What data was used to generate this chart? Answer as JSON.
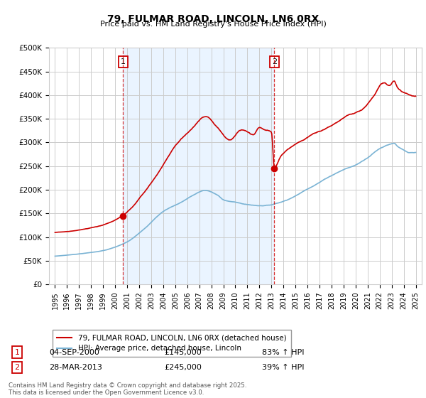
{
  "title": "79, FULMAR ROAD, LINCOLN, LN6 0RX",
  "subtitle": "Price paid vs. HM Land Registry's House Price Index (HPI)",
  "xlim_start": 1994.5,
  "xlim_end": 2025.5,
  "ylim_min": 0,
  "ylim_max": 500000,
  "yticks": [
    0,
    50000,
    100000,
    150000,
    200000,
    250000,
    300000,
    350000,
    400000,
    450000,
    500000
  ],
  "ytick_labels": [
    "£0",
    "£50K",
    "£100K",
    "£150K",
    "£200K",
    "£250K",
    "£300K",
    "£350K",
    "£400K",
    "£450K",
    "£500K"
  ],
  "xticks": [
    1995,
    1996,
    1997,
    1998,
    1999,
    2000,
    2001,
    2002,
    2003,
    2004,
    2005,
    2006,
    2007,
    2008,
    2009,
    2010,
    2011,
    2012,
    2013,
    2014,
    2015,
    2016,
    2017,
    2018,
    2019,
    2020,
    2021,
    2022,
    2023,
    2024,
    2025
  ],
  "red_line_color": "#cc0000",
  "blue_line_color": "#7ab3d4",
  "shading_color": "#ddeeff",
  "marker1_x": 2000.67,
  "marker1_y": 145000,
  "marker2_x": 2013.24,
  "marker2_y": 245000,
  "vline1_x": 2000.67,
  "vline2_x": 2013.24,
  "legend_label_red": "79, FULMAR ROAD, LINCOLN, LN6 0RX (detached house)",
  "legend_label_blue": "HPI: Average price, detached house, Lincoln",
  "annotation1_box": "1",
  "annotation2_box": "2",
  "footnote1_box_label": "1",
  "footnote1_date": "04-SEP-2000",
  "footnote1_price": "£145,000",
  "footnote1_hpi": "83% ↑ HPI",
  "footnote2_box_label": "2",
  "footnote2_date": "28-MAR-2013",
  "footnote2_price": "£245,000",
  "footnote2_hpi": "39% ↑ HPI",
  "copyright_text": "Contains HM Land Registry data © Crown copyright and database right 2025.\nThis data is licensed under the Open Government Licence v3.0.",
  "background_color": "#ffffff",
  "grid_color": "#cccccc"
}
